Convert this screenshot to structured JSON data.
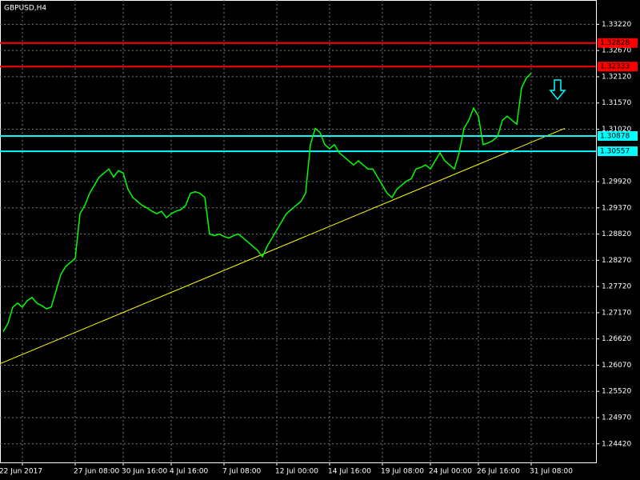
{
  "chart_data": {
    "type": "line",
    "title": "GBPUSD,H4",
    "color": "#00ff00",
    "grid": true,
    "categories": [
      null,
      null,
      null,
      null,
      "22 Jun 2017",
      null,
      null,
      null,
      null,
      null,
      null,
      null,
      null,
      null,
      null,
      "27 Jun 08:00",
      null,
      null,
      null,
      null,
      null,
      null,
      null,
      null,
      null,
      "30 Jun 16:00",
      null,
      null,
      null,
      null,
      null,
      null,
      null,
      null,
      null,
      "4 Jul 16:00",
      null,
      null,
      null,
      null,
      null,
      null,
      null,
      null,
      null,
      null,
      "7 Jul 08:00",
      null,
      null,
      null,
      null,
      null,
      null,
      null,
      null,
      null,
      null,
      "12 Jul 00:00",
      null,
      null,
      null,
      null,
      null,
      null,
      null,
      null,
      null,
      null,
      "14 Jul 16:00",
      null,
      null,
      null,
      null,
      null,
      null,
      null,
      null,
      null,
      null,
      "19 Jul 08:00",
      null,
      null,
      null,
      null,
      null,
      null,
      null,
      null,
      null,
      "24 Jul 00:00",
      null,
      null,
      null,
      null,
      null,
      null,
      null,
      null,
      null,
      "26 Jul 16:00",
      null,
      null,
      null,
      null,
      null,
      null,
      null,
      null,
      null,
      null,
      "31 Jul 08:00"
    ],
    "values": [
      1.26775,
      1.26946,
      1.27287,
      1.27372,
      1.27287,
      1.27423,
      1.27491,
      1.27372,
      1.27321,
      1.27252,
      1.27287,
      1.27628,
      1.27969,
      1.28139,
      1.28224,
      1.2831,
      1.29247,
      1.29418,
      1.29674,
      1.29844,
      1.30015,
      1.301,
      1.30185,
      1.30015,
      1.30151,
      1.301,
      1.29759,
      1.29588,
      1.29503,
      1.29418,
      1.29367,
      1.29298,
      1.29247,
      1.29298,
      1.29162,
      1.29247,
      1.29298,
      1.29333,
      1.29418,
      1.29674,
      1.29708,
      1.29674,
      1.29588,
      1.28821,
      1.28787,
      1.28821,
      1.2877,
      1.28736,
      1.28787,
      1.28821,
      1.28736,
      1.28651,
      1.28565,
      1.2848,
      1.28344,
      1.28565,
      1.28736,
      1.28906,
      1.29077,
      1.29247,
      1.29333,
      1.29418,
      1.29503,
      1.29674,
      1.30697,
      1.31038,
      1.30952,
      1.30697,
      1.30611,
      1.30697,
      1.30526,
      1.30441,
      1.30356,
      1.3027,
      1.30356,
      1.3027,
      1.30185,
      1.30185,
      1.30015,
      1.29844,
      1.29674,
      1.29588,
      1.29759,
      1.29844,
      1.29929,
      1.2998,
      1.30185,
      1.30219,
      1.3027,
      1.30185,
      1.30356,
      1.30526,
      1.30356,
      1.3027,
      1.30185,
      1.30526,
      1.31038,
      1.31208,
      1.31464,
      1.31293,
      1.30697,
      1.30731,
      1.30782,
      1.30867,
      1.31208,
      1.31293,
      1.31208,
      1.31123,
      1.3189,
      1.32095,
      1.32197
    ],
    "ylim": [
      1.2403,
      1.3373
    ],
    "yticks": [
      {
        "value": 1.3322,
        "label": "1.33220"
      },
      {
        "value": 1.3267,
        "label": "1.32670"
      },
      {
        "value": 1.3212,
        "label": "1.32120"
      },
      {
        "value": 1.3157,
        "label": "1.31570"
      },
      {
        "value": 1.3102,
        "label": "1.31020"
      },
      {
        "value": 1.2992,
        "label": "1.29920"
      },
      {
        "value": 1.2937,
        "label": "1.29370"
      },
      {
        "value": 1.2882,
        "label": "1.28820"
      },
      {
        "value": 1.2827,
        "label": "1.28270"
      },
      {
        "value": 1.2772,
        "label": "1.27720"
      },
      {
        "value": 1.2717,
        "label": "1.27170"
      },
      {
        "value": 1.2662,
        "label": "1.26620"
      },
      {
        "value": 1.2607,
        "label": "1.26070"
      },
      {
        "value": 1.2552,
        "label": "1.25520"
      },
      {
        "value": 1.2497,
        "label": "1.24970"
      },
      {
        "value": 1.2442,
        "label": "1.24420"
      }
    ],
    "levels": [
      {
        "value": 1.32828,
        "label": "1.32828",
        "color": "#ff0000"
      },
      {
        "value": 1.32333,
        "label": "1.32333",
        "color": "#ff0000"
      },
      {
        "value": 1.30878,
        "label": "1.30878",
        "color": "#00ffff"
      },
      {
        "value": 1.30557,
        "label": "1.30557",
        "color": "#00ffff"
      }
    ],
    "trendline": {
      "color": "#ffff00",
      "x": [
        0,
        117
      ],
      "values": [
        1.26127,
        1.31038
      ]
    }
  }
}
